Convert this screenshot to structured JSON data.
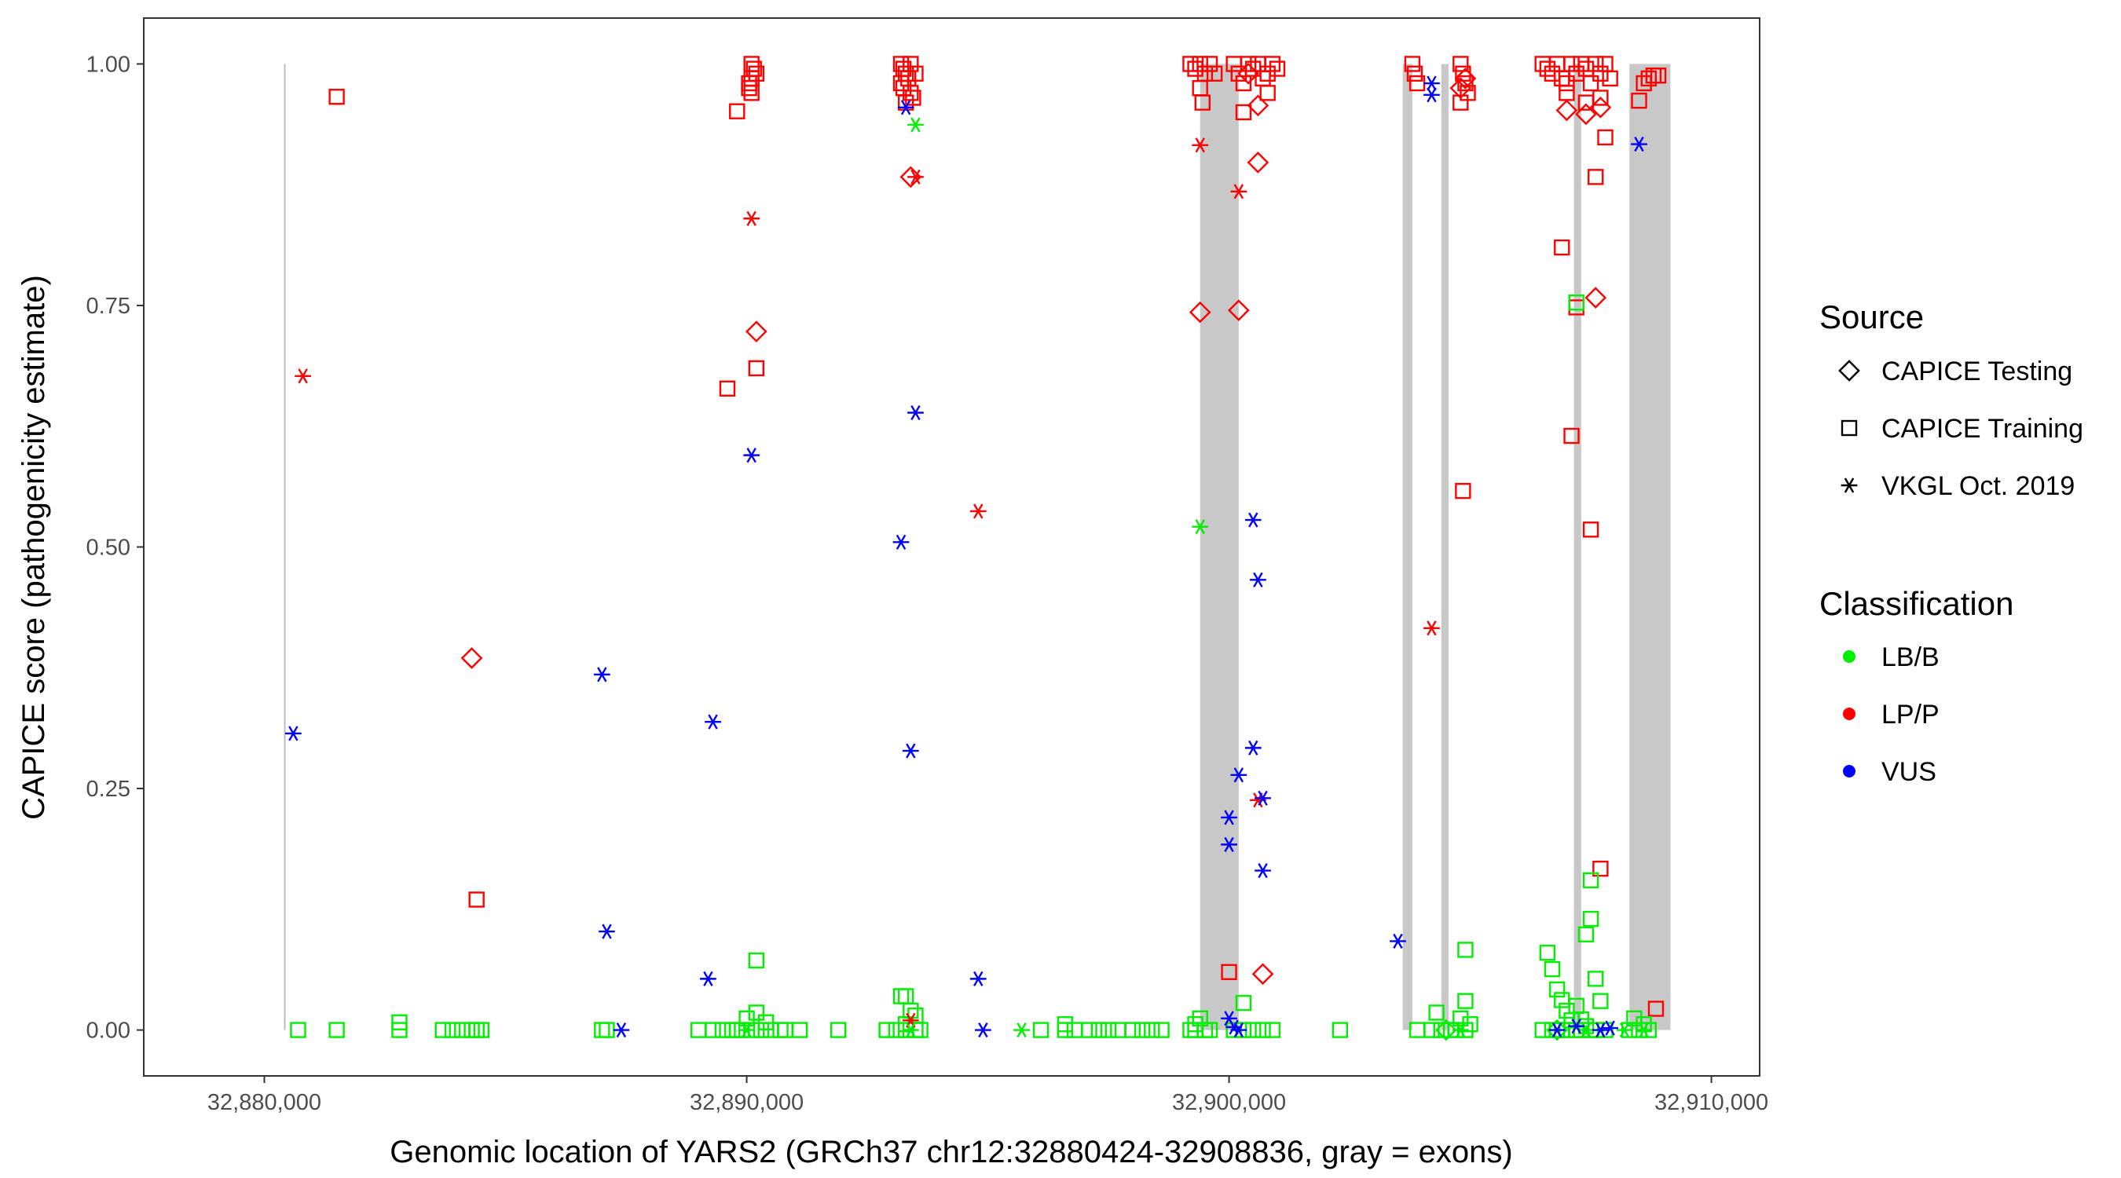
{
  "chart_data": {
    "type": "scatter",
    "title": "",
    "xlabel": "Genomic location of YARS2 (GRCh37 chr12:32880424-32908836, gray = exons)",
    "ylabel": "CAPICE score (pathogenicity estimate)",
    "xlim": [
      32877500,
      32911000
    ],
    "ylim": [
      -0.0475,
      1.0475
    ],
    "x_ticks": [
      32880000,
      32890000,
      32900000,
      32910000
    ],
    "x_tick_labels": [
      "32,880,000",
      "32,890,000",
      "32,900,000",
      "32,910,000"
    ],
    "y_ticks": [
      0.0,
      0.25,
      0.5,
      0.75,
      1.0
    ],
    "y_tick_labels": [
      "0.00",
      "0.25",
      "0.50",
      "0.75",
      "1.00"
    ],
    "grid": false,
    "legend_position": "right",
    "gene_span": [
      32880424,
      32908836
    ],
    "exons": [
      [
        32899400,
        32900200
      ],
      [
        32903600,
        32903800
      ],
      [
        32904400,
        32904550
      ],
      [
        32907150,
        32907300
      ],
      [
        32908300,
        32909150
      ]
    ],
    "legend": {
      "source_title": "Source",
      "source_entries": [
        {
          "key": "testing",
          "label": "CAPICE Testing",
          "shape": "diamond"
        },
        {
          "key": "training",
          "label": "CAPICE Training",
          "shape": "square"
        },
        {
          "key": "vkgl",
          "label": "VKGL Oct. 2019",
          "shape": "asterisk"
        }
      ],
      "class_title": "Classification",
      "class_entries": [
        {
          "key": "LB/B",
          "label": "LB/B",
          "color": "#00ee00"
        },
        {
          "key": "LP/P",
          "label": "LP/P",
          "color": "#ff0000"
        },
        {
          "key": "VUS",
          "label": "VUS",
          "color": "#0000ff"
        }
      ]
    },
    "series": [
      {
        "source": "testing",
        "class": "LP/P",
        "points": [
          [
            32884300,
            0.385
          ],
          [
            32890200,
            0.723
          ],
          [
            32893400,
            0.883
          ],
          [
            32899400,
            0.743
          ],
          [
            32900200,
            0.745
          ],
          [
            32900600,
            0.898
          ],
          [
            32900600,
            0.957
          ],
          [
            32900700,
            0.058
          ],
          [
            32907000,
            0.952
          ],
          [
            32907400,
            0.948
          ],
          [
            32907700,
            0.955
          ],
          [
            32907600,
            0.758
          ],
          [
            32904800,
            0.975
          ],
          [
            32900400,
            0.99
          ],
          [
            32904900,
            0.985
          ]
        ]
      },
      {
        "source": "testing",
        "class": "LB/B",
        "points": [
          [
            32904500,
            0.0
          ],
          [
            32906800,
            0.0
          ]
        ]
      },
      {
        "source": "training",
        "class": "LP/P",
        "points": [
          [
            32881500,
            0.966
          ],
          [
            32884400,
            0.135
          ],
          [
            32889600,
            0.664
          ],
          [
            32889800,
            0.951
          ],
          [
            32890200,
            0.685
          ],
          [
            32890050,
            0.975
          ],
          [
            32890100,
            0.985
          ],
          [
            32890150,
            0.995
          ],
          [
            32890100,
            1.0
          ],
          [
            32890200,
            0.99
          ],
          [
            32890050,
            0.98
          ],
          [
            32890100,
            0.97
          ],
          [
            32893200,
            1.0
          ],
          [
            32893250,
            0.995
          ],
          [
            32893300,
            0.99
          ],
          [
            32893350,
            0.985
          ],
          [
            32893200,
            0.98
          ],
          [
            32893250,
            0.975
          ],
          [
            32893400,
            0.97
          ],
          [
            32893450,
            0.965
          ],
          [
            32893300,
            0.96
          ],
          [
            32893400,
            1.0
          ],
          [
            32893500,
            0.99
          ],
          [
            32899200,
            1.0
          ],
          [
            32899300,
            0.995
          ],
          [
            32899400,
            1.0
          ],
          [
            32899500,
            0.99
          ],
          [
            32899600,
            1.0
          ],
          [
            32899700,
            0.99
          ],
          [
            32899400,
            0.975
          ],
          [
            32899450,
            0.96
          ],
          [
            32900100,
            1.0
          ],
          [
            32900200,
            0.99
          ],
          [
            32900300,
            0.98
          ],
          [
            32900400,
            1.0
          ],
          [
            32900500,
            0.995
          ],
          [
            32900600,
            1.0
          ],
          [
            32900700,
            0.985
          ],
          [
            32900800,
            0.99
          ],
          [
            32900900,
            1.0
          ],
          [
            32901000,
            0.995
          ],
          [
            32900300,
            0.95
          ],
          [
            32900800,
            0.97
          ],
          [
            32900000,
            0.06
          ],
          [
            32903800,
            1.0
          ],
          [
            32903850,
            0.99
          ],
          [
            32903900,
            0.98
          ],
          [
            32904800,
            1.0
          ],
          [
            32904850,
            0.99
          ],
          [
            32904900,
            0.98
          ],
          [
            32904950,
            0.97
          ],
          [
            32904800,
            0.96
          ],
          [
            32904850,
            0.558
          ],
          [
            32906500,
            1.0
          ],
          [
            32906600,
            0.995
          ],
          [
            32906700,
            0.99
          ],
          [
            32906800,
            1.0
          ],
          [
            32906900,
            0.985
          ],
          [
            32907000,
            0.98
          ],
          [
            32907100,
            1.0
          ],
          [
            32907200,
            0.99
          ],
          [
            32907300,
            1.0
          ],
          [
            32907400,
            0.995
          ],
          [
            32907500,
            0.98
          ],
          [
            32907600,
            1.0
          ],
          [
            32907700,
            0.99
          ],
          [
            32907800,
            1.0
          ],
          [
            32907900,
            0.985
          ],
          [
            32907000,
            0.97
          ],
          [
            32907400,
            0.96
          ],
          [
            32907700,
            0.965
          ],
          [
            32906900,
            0.81
          ],
          [
            32907200,
            0.748
          ],
          [
            32907100,
            0.615
          ],
          [
            32907500,
            0.518
          ],
          [
            32907600,
            0.883
          ],
          [
            32907800,
            0.924
          ],
          [
            32907700,
            0.167
          ],
          [
            32908500,
            0.962
          ],
          [
            32908600,
            0.98
          ],
          [
            32908700,
            0.985
          ],
          [
            32908800,
            0.988
          ],
          [
            32908900,
            0.988
          ],
          [
            32908850,
            0.022
          ]
        ]
      },
      {
        "source": "training",
        "class": "LB/B",
        "points": [
          [
            32880700,
            0.0
          ],
          [
            32881500,
            0.0
          ],
          [
            32882800,
            0.0
          ],
          [
            32882800,
            0.008
          ],
          [
            32883700,
            0.0
          ],
          [
            32883900,
            0.0
          ],
          [
            32884100,
            0.0
          ],
          [
            32884300,
            0.0
          ],
          [
            32884400,
            0.0
          ],
          [
            32884500,
            0.0
          ],
          [
            32887000,
            0.0
          ],
          [
            32887100,
            0.0
          ],
          [
            32889700,
            0.0
          ],
          [
            32889900,
            0.0
          ],
          [
            32890100,
            0.0
          ],
          [
            32890300,
            0.0
          ],
          [
            32890500,
            0.0
          ],
          [
            32890700,
            0.0
          ],
          [
            32889500,
            0.0
          ],
          [
            32889800,
            0.0
          ],
          [
            32889000,
            0.0
          ],
          [
            32889300,
            0.0
          ],
          [
            32890000,
            0.012
          ],
          [
            32890200,
            0.018
          ],
          [
            32890400,
            0.008
          ],
          [
            32890200,
            0.072
          ],
          [
            32890800,
            0.0
          ],
          [
            32891100,
            0.0
          ],
          [
            32891900,
            0.0
          ],
          [
            32892900,
            0.0
          ],
          [
            32893100,
            0.0
          ],
          [
            32893300,
            0.0
          ],
          [
            32893500,
            0.0
          ],
          [
            32893600,
            0.0
          ],
          [
            32893200,
            0.035
          ],
          [
            32893300,
            0.035
          ],
          [
            32893400,
            0.02
          ],
          [
            32893500,
            0.015
          ],
          [
            32893300,
            0.006
          ],
          [
            32896100,
            0.0
          ],
          [
            32896600,
            0.0
          ],
          [
            32896800,
            0.0
          ],
          [
            32897100,
            0.0
          ],
          [
            32897300,
            0.0
          ],
          [
            32897500,
            0.0
          ],
          [
            32897700,
            0.0
          ],
          [
            32898000,
            0.0
          ],
          [
            32898200,
            0.0
          ],
          [
            32898400,
            0.0
          ],
          [
            32898600,
            0.0
          ],
          [
            32896600,
            0.006
          ],
          [
            32899200,
            0.0
          ],
          [
            32899300,
            0.0
          ],
          [
            32899500,
            0.0
          ],
          [
            32899600,
            0.0
          ],
          [
            32899300,
            0.006
          ],
          [
            32899400,
            0.012
          ],
          [
            32900100,
            0.0
          ],
          [
            32900300,
            0.0
          ],
          [
            32900500,
            0.0
          ],
          [
            32900700,
            0.0
          ],
          [
            32900900,
            0.0
          ],
          [
            32900300,
            0.028
          ],
          [
            32902300,
            0.0
          ],
          [
            32903900,
            0.0
          ],
          [
            32904200,
            0.0
          ],
          [
            32904400,
            0.0
          ],
          [
            32904600,
            0.0
          ],
          [
            32904300,
            0.018
          ],
          [
            32904700,
            0.0
          ],
          [
            32904900,
            0.0
          ],
          [
            32904900,
            0.083
          ],
          [
            32904900,
            0.03
          ],
          [
            32904800,
            0.012
          ],
          [
            32905000,
            0.006
          ],
          [
            32906500,
            0.0
          ],
          [
            32906700,
            0.0
          ],
          [
            32906800,
            0.0
          ],
          [
            32906900,
            0.0
          ],
          [
            32907000,
            0.0
          ],
          [
            32907200,
            0.0
          ],
          [
            32907300,
            0.0
          ],
          [
            32907500,
            0.0
          ],
          [
            32907600,
            0.0
          ],
          [
            32907800,
            0.0
          ],
          [
            32906600,
            0.08
          ],
          [
            32906700,
            0.063
          ],
          [
            32906800,
            0.042
          ],
          [
            32906900,
            0.031
          ],
          [
            32907000,
            0.02
          ],
          [
            32907100,
            0.01
          ],
          [
            32907200,
            0.025
          ],
          [
            32907400,
            0.099
          ],
          [
            32907500,
            0.115
          ],
          [
            32907500,
            0.155
          ],
          [
            32907600,
            0.053
          ],
          [
            32907700,
            0.03
          ],
          [
            32907300,
            0.011
          ],
          [
            32907400,
            0.004
          ],
          [
            32907200,
            0.753
          ],
          [
            32908300,
            0.0
          ],
          [
            32908500,
            0.0
          ],
          [
            32908700,
            0.0
          ],
          [
            32908400,
            0.012
          ],
          [
            32908600,
            0.006
          ]
        ]
      },
      {
        "source": "vkgl",
        "class": "LP/P",
        "points": [
          [
            32880800,
            0.677
          ],
          [
            32890100,
            0.84
          ],
          [
            32893500,
            0.883
          ],
          [
            32893400,
            0.01
          ],
          [
            32894800,
            0.537
          ],
          [
            32899400,
            0.916
          ],
          [
            32900200,
            0.868
          ],
          [
            32900600,
            0.238
          ],
          [
            32904200,
            0.416
          ]
        ]
      },
      {
        "source": "vkgl",
        "class": "LB/B",
        "points": [
          [
            32893500,
            0.937
          ],
          [
            32899400,
            0.521
          ],
          [
            32890000,
            0.0
          ],
          [
            32893400,
            0.0
          ],
          [
            32895700,
            0.0
          ],
          [
            32904800,
            0.0
          ],
          [
            32907400,
            0.0
          ],
          [
            32908200,
            0.0
          ],
          [
            32908600,
            0.0
          ]
        ]
      },
      {
        "source": "vkgl",
        "class": "VUS",
        "points": [
          [
            32880600,
            0.307
          ],
          [
            32887000,
            0.368
          ],
          [
            32887100,
            0.102
          ],
          [
            32887400,
            0.0
          ],
          [
            32889200,
            0.053
          ],
          [
            32889300,
            0.319
          ],
          [
            32890100,
            0.595
          ],
          [
            32893200,
            0.505
          ],
          [
            32893300,
            0.955
          ],
          [
            32893400,
            0.289
          ],
          [
            32893500,
            0.639
          ],
          [
            32894800,
            0.053
          ],
          [
            32894900,
            0.0
          ],
          [
            32900000,
            0.22
          ],
          [
            32900000,
            0.192
          ],
          [
            32900200,
            0.264
          ],
          [
            32900500,
            0.292
          ],
          [
            32900500,
            0.528
          ],
          [
            32900600,
            0.466
          ],
          [
            32900700,
            0.24
          ],
          [
            32900700,
            0.165
          ],
          [
            32900000,
            0.012
          ],
          [
            32900100,
            0.003
          ],
          [
            32900200,
            0.0
          ],
          [
            32903500,
            0.092
          ],
          [
            32904200,
            0.968
          ],
          [
            32904200,
            0.98
          ],
          [
            32908500,
            0.917
          ],
          [
            32906800,
            0.0
          ],
          [
            32907200,
            0.004
          ],
          [
            32907700,
            0.0
          ],
          [
            32907900,
            0.002
          ]
        ]
      }
    ]
  }
}
